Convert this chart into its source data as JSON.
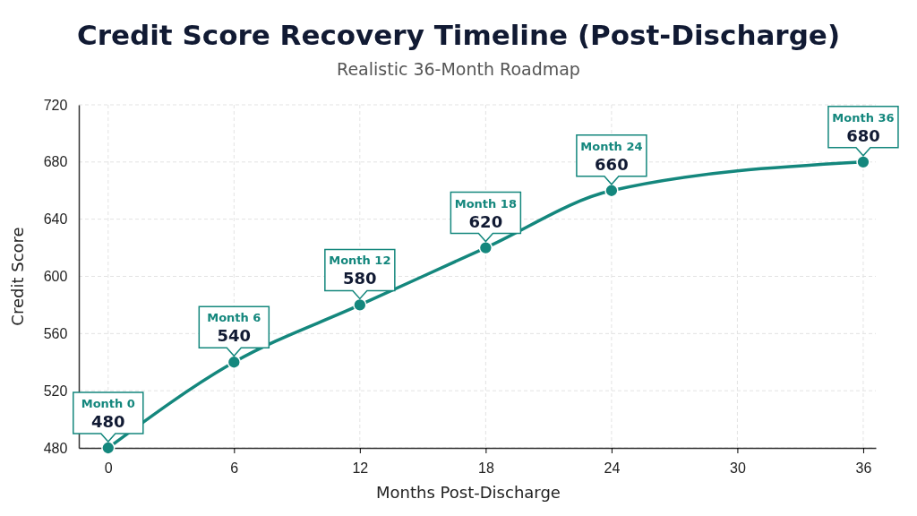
{
  "chart_data": {
    "type": "line",
    "title": "Credit Score Recovery Timeline (Post-Discharge)",
    "subtitle": "Realistic 36-Month Roadmap",
    "xlabel": "Months Post-Discharge",
    "ylabel": "Credit Score",
    "x": [
      0,
      6,
      12,
      18,
      24,
      36
    ],
    "series": [
      {
        "color": "#14877d",
        "values": [
          480,
          540,
          580,
          620,
          660,
          680
        ]
      }
    ],
    "xlim": [
      -1.4,
      36.6
    ],
    "xticks": [
      0,
      6,
      12,
      18,
      24,
      30,
      36
    ],
    "ylim": [
      480,
      720
    ],
    "yticks": [
      480,
      520,
      560,
      600,
      640,
      680,
      720
    ],
    "grid": true,
    "marker": "circle",
    "line_style": "solid",
    "data_labels": true,
    "annotations": [
      "Month 0",
      "Month 6",
      "Month 12",
      "Month 18",
      "Month 24",
      "Month 36"
    ]
  }
}
